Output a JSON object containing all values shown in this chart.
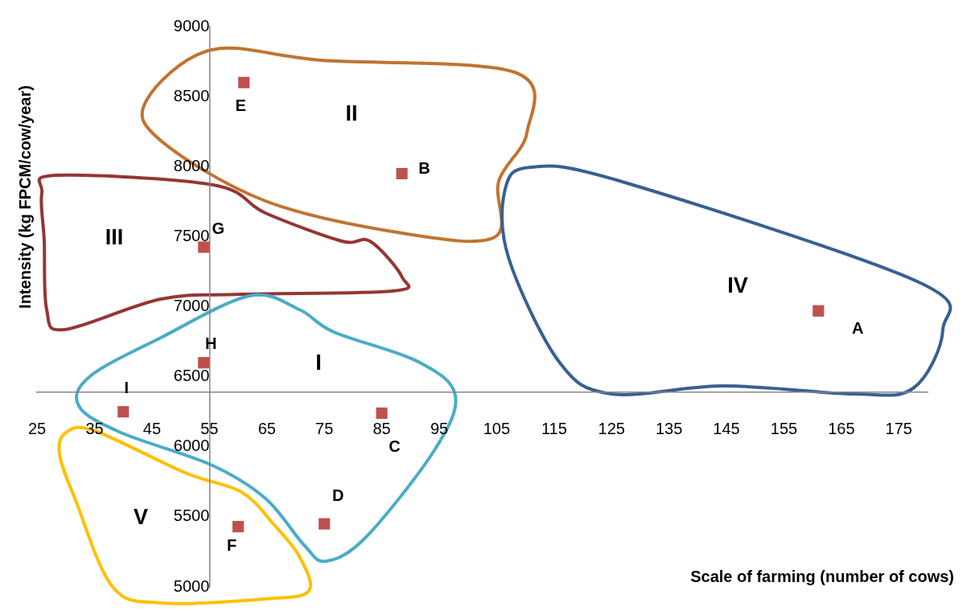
{
  "chart_data": {
    "type": "scatter",
    "xlabel": "Scale of farming (number of cows)",
    "ylabel": "Intensity (kg FPCM/cow/year)",
    "series": [
      {
        "color": "#c0504d",
        "x": [
          161,
          88.5,
          85,
          75,
          61,
          60,
          54,
          54,
          40
        ],
        "values": [
          6970,
          7950,
          6240,
          5450,
          8600,
          5430,
          7425,
          6600,
          6250
        ]
      }
    ],
    "xlim": [
      25,
      180
    ],
    "xticks": [
      25,
      35,
      45,
      55,
      65,
      75,
      85,
      95,
      105,
      115,
      125,
      135,
      145,
      155,
      165,
      175
    ],
    "ylim": [
      5000,
      9000
    ],
    "yticks": [
      5000,
      5500,
      6000,
      6500,
      7000,
      7500,
      8000,
      8500,
      9000
    ],
    "grid": false,
    "legend": false,
    "marker": "square",
    "annotations": [
      {
        "text": "A",
        "x": 161,
        "y": 6970
      },
      {
        "text": "B",
        "x": 88.5,
        "y": 7950
      },
      {
        "text": "C",
        "x": 85,
        "y": 6240
      },
      {
        "text": "D",
        "x": 75,
        "y": 5450
      },
      {
        "text": "E",
        "x": 61,
        "y": 8600
      },
      {
        "text": "F",
        "x": 60,
        "y": 5430
      },
      {
        "text": "G",
        "x": 54,
        "y": 7425
      },
      {
        "text": "H",
        "x": 54,
        "y": 6600
      },
      {
        "text": "I",
        "x": 40,
        "y": 6250
      },
      "I",
      "II",
      "III",
      "IV",
      "V"
    ]
  }
}
